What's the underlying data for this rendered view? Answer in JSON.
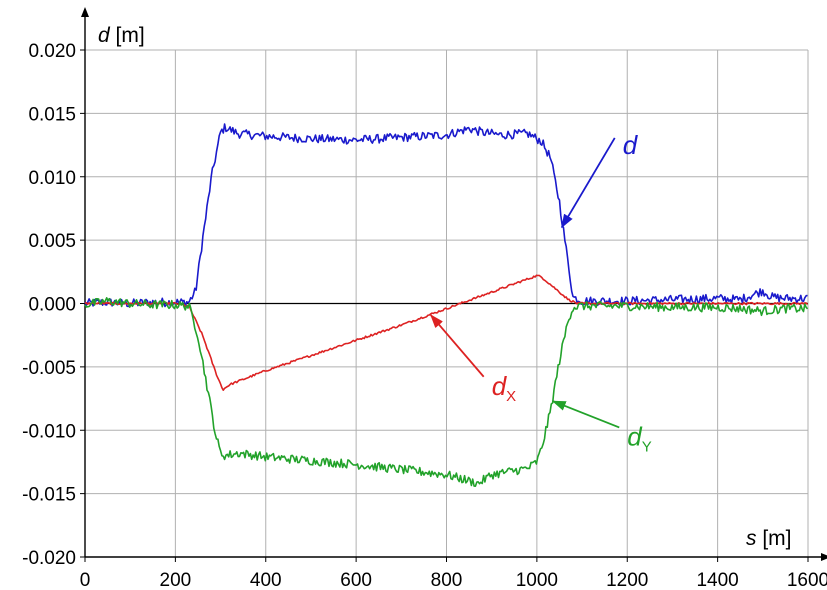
{
  "chart_data": {
    "type": "line",
    "title": "",
    "xlabel_var": "s",
    "xlabel_unit": " [m]",
    "ylabel_var": "d",
    "ylabel_unit": " [m]",
    "xlim": [
      0,
      1600
    ],
    "ylim": [
      -0.02,
      0.02
    ],
    "x_ticks": [
      0,
      200,
      400,
      600,
      800,
      1000,
      1200,
      1400,
      1600
    ],
    "y_ticks": [
      0.02,
      0.015,
      0.01,
      0.005,
      0,
      -0.005,
      -0.01,
      -0.015,
      -0.02
    ],
    "x_tick_labels": [
      "0",
      "200",
      "400",
      "600",
      "800",
      "1000",
      "1200",
      "1400",
      "1600"
    ],
    "y_tick_labels": [
      "0.020",
      "0.015",
      "0.010",
      "0.005",
      "0.000",
      "-0.005",
      "-0.010",
      "-0.015",
      "-0.020"
    ],
    "grid": true,
    "legend": "none",
    "series": [
      {
        "name": "d",
        "color": "#1a1acc",
        "x": [
          0,
          50,
          100,
          150,
          200,
          230,
          245,
          260,
          280,
          300,
          310,
          340,
          400,
          500,
          600,
          700,
          800,
          850,
          880,
          920,
          980,
          1000,
          1010,
          1030,
          1050,
          1070,
          1080,
          1100,
          1200,
          1300,
          1400,
          1450,
          1500,
          1520,
          1550,
          1600
        ],
        "y": [
          0.0,
          0.0001,
          0.0,
          0.0001,
          0.0001,
          0.0001,
          0.001,
          0.005,
          0.01,
          0.0135,
          0.0139,
          0.0134,
          0.0132,
          0.013,
          0.0129,
          0.0131,
          0.0133,
          0.0138,
          0.0135,
          0.0133,
          0.0134,
          0.013,
          0.0128,
          0.0115,
          0.008,
          0.003,
          0.0005,
          0.0002,
          0.0002,
          0.0003,
          0.0004,
          0.0003,
          0.001,
          0.0005,
          0.0004,
          0.0004
        ]
      },
      {
        "name": "dX",
        "color": "#dd2222",
        "x": [
          0,
          100,
          200,
          230,
          260,
          290,
          305,
          320,
          400,
          500,
          600,
          700,
          800,
          900,
          1000,
          1010,
          1040,
          1070,
          1090,
          1100,
          1200,
          1300,
          1400,
          1500,
          1600
        ],
        "y": [
          0.0,
          0.0,
          0.0,
          -0.0002,
          -0.0025,
          -0.0055,
          -0.0068,
          -0.0064,
          -0.0053,
          -0.0041,
          -0.0029,
          -0.0017,
          -0.0004,
          0.0009,
          0.0022,
          0.0021,
          0.0012,
          0.0003,
          0.0,
          0.0,
          0.0,
          0.0,
          0.0,
          0.0,
          0.0
        ]
      },
      {
        "name": "dY",
        "color": "#22a22a",
        "x": [
          0,
          50,
          100,
          150,
          200,
          230,
          250,
          270,
          290,
          300,
          310,
          340,
          400,
          500,
          600,
          700,
          800,
          850,
          870,
          900,
          980,
          1000,
          1010,
          1030,
          1050,
          1070,
          1080,
          1100,
          1200,
          1300,
          1400,
          1450,
          1500,
          1550,
          1600
        ],
        "y": [
          -0.0001,
          0.0002,
          0.0,
          -0.0001,
          -0.0001,
          -0.0002,
          -0.0025,
          -0.0065,
          -0.0105,
          -0.0118,
          -0.012,
          -0.0118,
          -0.0121,
          -0.0124,
          -0.0127,
          -0.0131,
          -0.0135,
          -0.014,
          -0.0142,
          -0.0135,
          -0.013,
          -0.0125,
          -0.0115,
          -0.0085,
          -0.0045,
          -0.0012,
          -0.0003,
          -0.0002,
          -0.0002,
          -0.0003,
          -0.0003,
          -0.0004,
          -0.0006,
          -0.0004,
          -0.0004
        ]
      }
    ],
    "annotations": [
      {
        "var": "d",
        "sub": "",
        "color": "#1a1acc",
        "label_x": 1190,
        "label_y": 0.0118,
        "target_x": 1055,
        "target_y": 0.006
      },
      {
        "var": "d",
        "sub": "X",
        "color": "#dd2222",
        "label_x": 900,
        "label_y": -0.0072,
        "target_x": 765,
        "target_y": -0.0009
      },
      {
        "var": "d",
        "sub": "Y",
        "color": "#22a22a",
        "label_x": 1200,
        "label_y": -0.0112,
        "target_x": 1035,
        "target_y": -0.0077
      }
    ]
  }
}
